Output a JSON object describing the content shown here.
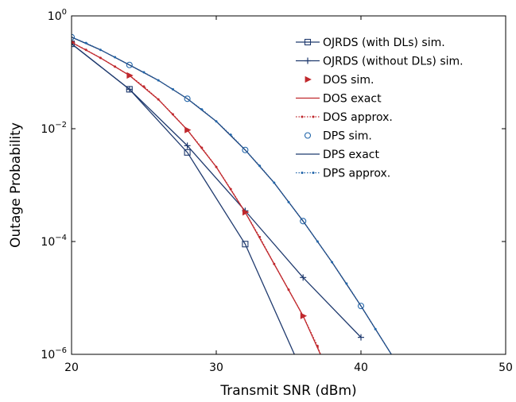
{
  "chart_data": {
    "type": "line",
    "xlabel": "Transmit SNR (dBm)",
    "ylabel": "Outage Probability",
    "xlim": [
      20,
      50
    ],
    "ylim": [
      1e-06,
      1
    ],
    "yscale": "log",
    "grid": false,
    "legend_position": "top-right",
    "x_ticks": [
      20,
      30,
      40,
      50
    ],
    "y_ticks": [
      {
        "value": 1e-06,
        "base": "10",
        "exp": "−6"
      },
      {
        "value": 0.0001,
        "base": "10",
        "exp": "−4"
      },
      {
        "value": 0.01,
        "base": "10",
        "exp": "−2"
      },
      {
        "value": 1,
        "base": "10",
        "exp": "0"
      }
    ],
    "series": [
      {
        "name": "OJRDS (with DLs) sim.",
        "color": "#1f3a6e",
        "line": true,
        "dashed": false,
        "marker": "square",
        "x": [
          20,
          24,
          28,
          32,
          35.4
        ],
        "y": [
          0.32,
          0.05,
          0.0038,
          9e-05,
          1e-06
        ],
        "marker_x": [
          20,
          24,
          28,
          32
        ]
      },
      {
        "name": "OJRDS (without DLs) sim.",
        "color": "#1f3a6e",
        "line": true,
        "dashed": false,
        "marker": "plus",
        "x": [
          20,
          24,
          28,
          32,
          36,
          40
        ],
        "y": [
          0.32,
          0.05,
          0.005,
          0.00035,
          2.3e-05,
          2e-06
        ],
        "marker_x": [
          20,
          24,
          28,
          32,
          36,
          40
        ]
      },
      {
        "name": "DOS sim.",
        "color": "#c0282d",
        "line": false,
        "dashed": false,
        "marker": "triangle-right",
        "x": [
          20,
          24,
          28,
          32,
          36
        ],
        "y": [
          0.34,
          0.088,
          0.0095,
          0.00033,
          4.8e-06
        ],
        "marker_x": [
          20,
          24,
          28,
          32,
          36
        ]
      },
      {
        "name": "DOS exact",
        "color": "#c0282d",
        "line": true,
        "dashed": false,
        "marker": "none",
        "x": [
          20,
          22,
          24,
          26,
          28,
          30,
          32,
          34,
          36,
          37.2
        ],
        "y": [
          0.34,
          0.18,
          0.088,
          0.033,
          0.0095,
          0.0021,
          0.00033,
          4e-05,
          4.8e-06,
          1e-06
        ],
        "marker_x": []
      },
      {
        "name": "DOS approx.",
        "color": "#c0282d",
        "line": true,
        "dashed": true,
        "marker": "dot",
        "x": [
          20,
          21,
          22,
          23,
          24,
          25,
          26,
          27,
          28,
          29,
          30,
          31,
          32,
          33,
          34,
          35,
          36,
          37,
          37.2
        ],
        "y": [
          0.34,
          0.25,
          0.18,
          0.126,
          0.088,
          0.056,
          0.033,
          0.018,
          0.0095,
          0.0046,
          0.0021,
          0.00085,
          0.00033,
          0.00012,
          4e-05,
          1.4e-05,
          4.8e-06,
          1.4e-06,
          1e-06
        ],
        "marker_x": [
          21,
          22,
          23,
          25,
          26,
          27,
          29,
          30,
          31,
          33,
          34,
          35,
          37
        ]
      },
      {
        "name": "DPS sim.",
        "color": "#2266aa",
        "line": false,
        "dashed": false,
        "marker": "circle",
        "x": [
          20,
          24,
          28,
          32,
          36,
          40
        ],
        "y": [
          0.42,
          0.135,
          0.034,
          0.0042,
          0.00023,
          7.2e-06
        ],
        "marker_x": [
          20,
          24,
          28,
          32,
          36,
          40
        ]
      },
      {
        "name": "DPS exact",
        "color": "#1f3a6e",
        "line": true,
        "dashed": false,
        "marker": "none",
        "x": [
          20,
          22,
          24,
          26,
          28,
          30,
          32,
          34,
          36,
          38,
          40,
          42.1
        ],
        "y": [
          0.42,
          0.25,
          0.135,
          0.072,
          0.034,
          0.0135,
          0.0042,
          0.0011,
          0.00023,
          4.3e-05,
          7.2e-06,
          1e-06
        ],
        "marker_x": []
      },
      {
        "name": "DPS approx.",
        "color": "#2266aa",
        "line": true,
        "dashed": true,
        "marker": "dot",
        "x": [
          20,
          21,
          22,
          23,
          24,
          25,
          26,
          27,
          28,
          29,
          30,
          31,
          32,
          33,
          34,
          35,
          36,
          37,
          38,
          39,
          40,
          41,
          42.1
        ],
        "y": [
          0.42,
          0.33,
          0.25,
          0.185,
          0.135,
          0.1,
          0.072,
          0.05,
          0.034,
          0.022,
          0.0135,
          0.0078,
          0.0042,
          0.0022,
          0.0011,
          0.0005,
          0.00023,
          0.0001,
          4.3e-05,
          1.8e-05,
          7.2e-06,
          2.8e-06,
          1e-06
        ],
        "marker_x": [
          21,
          22,
          23,
          25,
          26,
          27,
          29,
          30,
          31,
          33,
          34,
          35,
          37,
          38,
          39,
          41
        ]
      }
    ]
  }
}
